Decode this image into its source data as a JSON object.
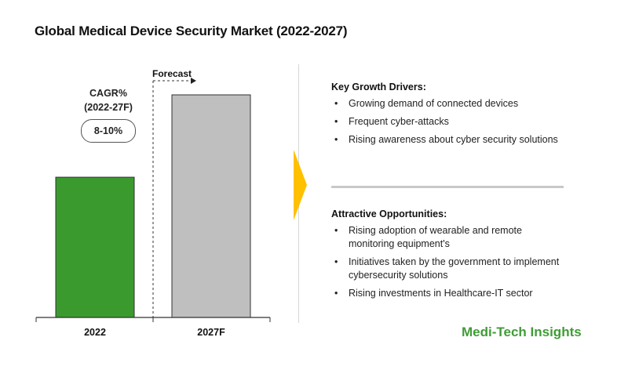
{
  "title": "Global Medical Device Security Market (2022-2027)",
  "cagr": {
    "label": "CAGR%",
    "period": "(2022-27F)",
    "value": "8-10%"
  },
  "forecast_label": "Forecast",
  "chart_data": {
    "type": "bar",
    "title": "Global Medical Device Security Market (2022-2027)",
    "categories": [
      "2022",
      "2027F"
    ],
    "values": [
      0.63,
      1.0
    ],
    "value_note": "relative bar heights, no value axis shown",
    "colors": [
      "#3a9a2e",
      "#bfbfbf"
    ],
    "xlabel": "",
    "ylabel": "",
    "grid": false
  },
  "growth_drivers": {
    "heading": "Key Growth Drivers:",
    "items": [
      "Growing demand of connected devices",
      "Frequent cyber-attacks",
      "Rising awareness about cyber security solutions"
    ]
  },
  "opportunities": {
    "heading": "Attractive Opportunities:",
    "items": [
      "Rising adoption of wearable and remote monitoring equipment's",
      "Initiatives taken by the government to implement cybersecurity solutions",
      "Rising investments in Healthcare-IT sector"
    ]
  },
  "bullet_char": "•",
  "brand": "Medi-Tech Insights",
  "colors": {
    "accent_arrow": "#ffc000",
    "brand_green": "#3f9c35",
    "bar_2022": "#3a9a2e",
    "bar_2027F": "#bfbfbf"
  }
}
